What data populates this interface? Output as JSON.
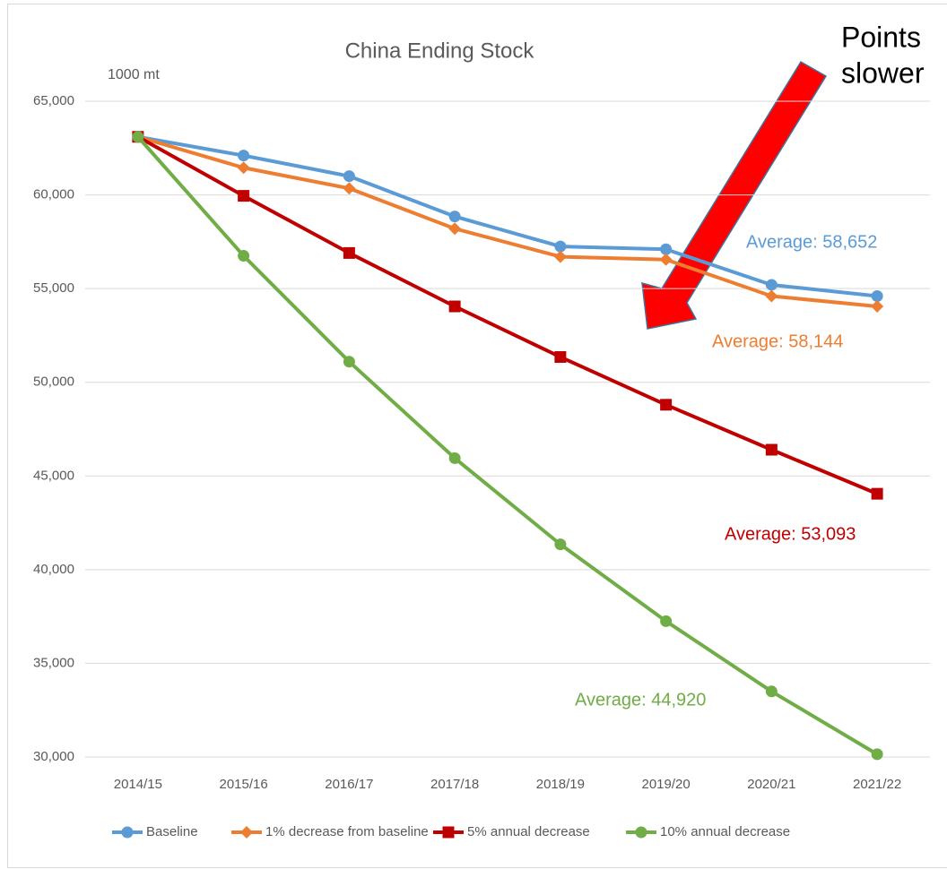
{
  "chart_data": {
    "type": "line",
    "title": "China Ending Stock",
    "y_unit_label": "1000 mt",
    "categories": [
      "2014/15",
      "2015/16",
      "2016/17",
      "2017/18",
      "2018/19",
      "2019/20",
      "2020/21",
      "2021/22"
    ],
    "series": [
      {
        "name": "Baseline",
        "color": "#5b9bd5",
        "marker": "circle",
        "values": [
          63100,
          62100,
          61000,
          58850,
          57250,
          57100,
          55200,
          54600
        ]
      },
      {
        "name": "1% decrease from baseline",
        "color": "#ed7d31",
        "marker": "diamond",
        "values": [
          63100,
          61450,
          60350,
          58200,
          56700,
          56550,
          54600,
          54050
        ]
      },
      {
        "name": "5% annual decrease",
        "color": "#c00000",
        "marker": "square",
        "values": [
          63100,
          59950,
          56900,
          54050,
          51350,
          48800,
          46400,
          44050
        ]
      },
      {
        "name": "10% annual decrease",
        "color": "#70ad47",
        "marker": "circle",
        "values": [
          63100,
          56750,
          51100,
          45950,
          41350,
          37250,
          33500,
          30150
        ]
      }
    ],
    "ylim": [
      30000,
      65000
    ],
    "yticks": [
      {
        "value": 30000,
        "label": "30,000"
      },
      {
        "value": 35000,
        "label": "35,000"
      },
      {
        "value": 40000,
        "label": "40,000"
      },
      {
        "value": 45000,
        "label": "45,000"
      },
      {
        "value": 50000,
        "label": "50,000"
      },
      {
        "value": 55000,
        "label": "55,000"
      },
      {
        "value": 60000,
        "label": "60,000"
      },
      {
        "value": 65000,
        "label": "65,000"
      }
    ],
    "grid": true,
    "legend": "bottom",
    "annotations": [
      {
        "text": "Average: 58,652",
        "color": "#5b9bd5"
      },
      {
        "text": "Average: 58,144",
        "color": "#ed7d31"
      },
      {
        "text": "Average: 53,093",
        "color": "#c00000"
      },
      {
        "text": "Average: 44,920",
        "color": "#70ad47"
      },
      {
        "text": "Points",
        "color": "#000000"
      },
      {
        "text": "slower",
        "color": "#000000"
      }
    ]
  }
}
